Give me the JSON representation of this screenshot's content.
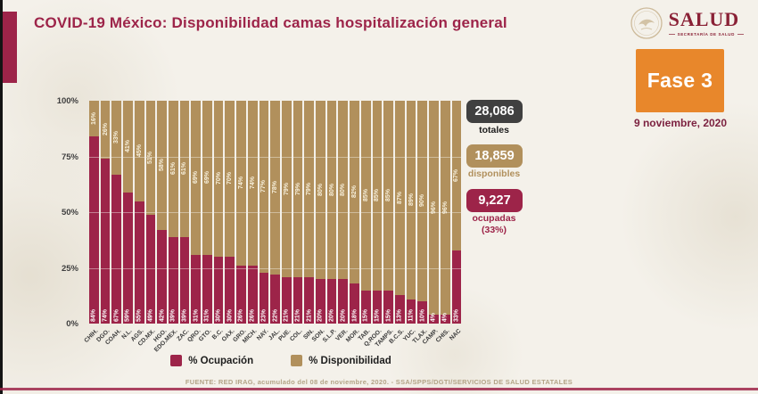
{
  "header": {
    "title": "COVID-19 México: Disponibilidad camas hospitalización general"
  },
  "logo": {
    "name": "SALUD",
    "subtitle": "SECRETARÍA DE SALUD"
  },
  "phase": {
    "label": "Fase 3",
    "date": "9 noviembre, 2020",
    "color": "#e8872b"
  },
  "stats": {
    "totales": {
      "value": "28,086",
      "label": "totales",
      "color": "#404040"
    },
    "disponibles": {
      "value": "18,859",
      "label": "disponibles",
      "color": "#b1905c"
    },
    "ocupadas": {
      "value": "9,227",
      "label": "ocupadas",
      "sublabel": "(33%)",
      "color": "#9d2449"
    }
  },
  "legend": {
    "ocupacion": {
      "label": "% Ocupación",
      "color": "#9d2449"
    },
    "disponibilidad": {
      "label": "% Disponibilidad",
      "color": "#b1905c"
    }
  },
  "chart_data": {
    "type": "bar",
    "stacked": true,
    "title": "COVID-19 México: Disponibilidad camas hospitalización general",
    "ylim": [
      0,
      100
    ],
    "ytick_labels": [
      "100%",
      "75%",
      "50%",
      "25%",
      "0%"
    ],
    "grid": "faint horizontal lines at 25/50/75 over bars",
    "legend_position": "bottom",
    "categories": [
      "CHIH.",
      "DGO.",
      "COAH.",
      "N.L.",
      "AGS.",
      "CD.MX.",
      "HGO.",
      "EDO.MEX.",
      "ZAC.",
      "QRO.",
      "GTO.",
      "B.C.",
      "OAX.",
      "GRO.",
      "MICH.",
      "NAY.",
      "JAL.",
      "PUE.",
      "COL.",
      "SIN.",
      "SON.",
      "S.L.P.",
      "VER.",
      "MOR.",
      "TAB.",
      "Q.ROO.",
      "TAMPS.",
      "B.C.S.",
      "YUC.",
      "TLAX.",
      "CAMP.",
      "CHIS.",
      "NAC"
    ],
    "series": [
      {
        "name": "% Ocupación",
        "color": "#9d2449",
        "values": [
          84,
          74,
          67,
          59,
          55,
          49,
          42,
          39,
          39,
          31,
          31,
          30,
          30,
          26,
          26,
          23,
          22,
          21,
          21,
          21,
          20,
          20,
          20,
          18,
          15,
          15,
          15,
          13,
          11,
          10,
          4,
          4,
          33
        ]
      },
      {
        "name": "% Disponibilidad",
        "color": "#b1905c",
        "values": [
          16,
          26,
          33,
          41,
          45,
          51,
          58,
          61,
          61,
          69,
          69,
          70,
          70,
          74,
          74,
          77,
          78,
          79,
          79,
          79,
          80,
          80,
          80,
          82,
          85,
          85,
          85,
          87,
          89,
          90,
          96,
          96,
          67
        ]
      }
    ]
  },
  "footer": {
    "source": "FUENTE: RED IRAG, acumulado del 08 de noviembre, 2020. -  SSA/SPPS/DGTI/SERVICIOS DE SALUD ESTATALES"
  }
}
